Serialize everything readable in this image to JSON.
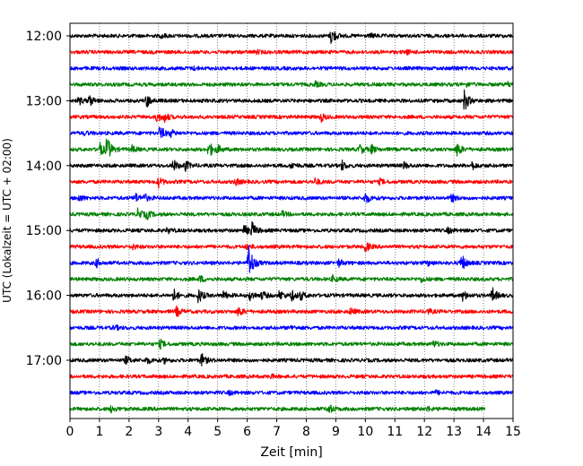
{
  "chart_data": {
    "type": "line",
    "title": "",
    "xlabel": "Zeit  [min]",
    "ylabel": "UTC (Lokalzeit = UTC + 02:00)",
    "xlim": [
      0,
      15
    ],
    "x_ticks": [
      "0",
      "1",
      "2",
      "3",
      "4",
      "5",
      "6",
      "7",
      "8",
      "9",
      "10",
      "11",
      "12",
      "13",
      "14",
      "15"
    ],
    "y_tick_labels": [
      {
        "label": "12:00",
        "row": 0
      },
      {
        "label": "13:00",
        "row": 4
      },
      {
        "label": "14:00",
        "row": 8
      },
      {
        "label": "15:00",
        "row": 12
      },
      {
        "label": "16:00",
        "row": 16
      },
      {
        "label": "17:00",
        "row": 20
      }
    ],
    "row_count": 24,
    "row_interval_min": 15,
    "grid": {
      "vertical": true,
      "horizontal": false,
      "style": "dotted"
    },
    "colors": [
      "#000000",
      "#ff0000",
      "#0000ff",
      "#008000"
    ],
    "traces": [
      {
        "row": 0,
        "color": "#000000",
        "events": [
          {
            "t": 8.85,
            "a": 1.1
          },
          {
            "t": 3.1,
            "a": 0.25
          },
          {
            "t": 10.2,
            "a": 0.2
          }
        ]
      },
      {
        "row": 1,
        "color": "#ff0000",
        "events": [
          {
            "t": 6.3,
            "a": 0.2
          },
          {
            "t": 11.4,
            "a": 0.2
          }
        ]
      },
      {
        "row": 2,
        "color": "#0000ff",
        "events": [
          {
            "t": 4.2,
            "a": 0.15
          },
          {
            "t": 13.0,
            "a": 0.2
          }
        ]
      },
      {
        "row": 3,
        "color": "#008000",
        "events": [
          {
            "t": 8.3,
            "a": 0.3
          },
          {
            "t": 13.4,
            "a": 0.25
          },
          {
            "t": 14.8,
            "a": 0.3
          }
        ]
      },
      {
        "row": 4,
        "color": "#000000",
        "events": [
          {
            "t": 0.3,
            "a": 0.45
          },
          {
            "t": 0.65,
            "a": 0.7
          },
          {
            "t": 2.6,
            "a": 0.8
          },
          {
            "t": 13.35,
            "a": 1.3
          }
        ]
      },
      {
        "row": 5,
        "color": "#ff0000",
        "events": [
          {
            "t": 2.95,
            "a": 0.6
          },
          {
            "t": 3.2,
            "a": 0.5
          },
          {
            "t": 8.5,
            "a": 0.5
          }
        ]
      },
      {
        "row": 6,
        "color": "#0000ff",
        "events": [
          {
            "t": 3.05,
            "a": 0.9
          },
          {
            "t": 3.4,
            "a": 0.4
          },
          {
            "t": 0.5,
            "a": 0.2
          }
        ]
      },
      {
        "row": 7,
        "color": "#008000",
        "events": [
          {
            "t": 1.0,
            "a": 0.9
          },
          {
            "t": 1.25,
            "a": 1.5
          },
          {
            "t": 2.1,
            "a": 0.4
          },
          {
            "t": 4.7,
            "a": 1.0
          },
          {
            "t": 5.0,
            "a": 0.4
          },
          {
            "t": 9.8,
            "a": 0.6
          },
          {
            "t": 10.2,
            "a": 0.5
          },
          {
            "t": 13.1,
            "a": 0.9
          }
        ]
      },
      {
        "row": 8,
        "color": "#000000",
        "events": [
          {
            "t": 3.5,
            "a": 0.7
          },
          {
            "t": 3.9,
            "a": 0.6
          },
          {
            "t": 7.5,
            "a": 0.4
          },
          {
            "t": 9.2,
            "a": 0.6
          },
          {
            "t": 11.3,
            "a": 0.4
          },
          {
            "t": 13.6,
            "a": 0.5
          }
        ]
      },
      {
        "row": 9,
        "color": "#ff0000",
        "events": [
          {
            "t": 3.0,
            "a": 0.6
          },
          {
            "t": 5.6,
            "a": 0.4
          },
          {
            "t": 8.3,
            "a": 0.4
          },
          {
            "t": 10.5,
            "a": 0.3
          }
        ]
      },
      {
        "row": 10,
        "color": "#0000ff",
        "events": [
          {
            "t": 0.3,
            "a": 0.4
          },
          {
            "t": 2.2,
            "a": 0.6
          },
          {
            "t": 2.5,
            "a": 0.5
          },
          {
            "t": 10.0,
            "a": 0.7
          },
          {
            "t": 12.9,
            "a": 0.5
          }
        ]
      },
      {
        "row": 11,
        "color": "#008000",
        "events": [
          {
            "t": 2.3,
            "a": 0.7
          },
          {
            "t": 2.6,
            "a": 0.5
          },
          {
            "t": 7.2,
            "a": 0.3
          }
        ]
      },
      {
        "row": 12,
        "color": "#000000",
        "events": [
          {
            "t": 5.9,
            "a": 0.6
          },
          {
            "t": 6.15,
            "a": 1.0
          },
          {
            "t": 3.3,
            "a": 0.3
          },
          {
            "t": 12.8,
            "a": 0.3
          }
        ]
      },
      {
        "row": 13,
        "color": "#ff0000",
        "events": [
          {
            "t": 10.0,
            "a": 0.6
          },
          {
            "t": 2.1,
            "a": 0.3
          },
          {
            "t": 6.0,
            "a": 0.3
          }
        ]
      },
      {
        "row": 14,
        "color": "#0000ff",
        "events": [
          {
            "t": 6.05,
            "a": 2.5
          },
          {
            "t": 13.25,
            "a": 1.1
          },
          {
            "t": 0.9,
            "a": 0.5
          },
          {
            "t": 9.1,
            "a": 0.4
          },
          {
            "t": 12.1,
            "a": 0.3
          }
        ]
      },
      {
        "row": 15,
        "color": "#008000",
        "events": [
          {
            "t": 4.4,
            "a": 0.4
          },
          {
            "t": 8.9,
            "a": 0.4
          },
          {
            "t": 11.9,
            "a": 0.3
          }
        ]
      },
      {
        "row": 16,
        "color": "#000000",
        "events": [
          {
            "t": 3.5,
            "a": 0.8
          },
          {
            "t": 4.35,
            "a": 0.9
          },
          {
            "t": 5.2,
            "a": 0.5
          },
          {
            "t": 6.1,
            "a": 0.6
          },
          {
            "t": 6.5,
            "a": 0.5
          },
          {
            "t": 7.1,
            "a": 0.6
          },
          {
            "t": 7.5,
            "a": 0.6
          },
          {
            "t": 7.8,
            "a": 0.5
          },
          {
            "t": 13.3,
            "a": 0.6
          },
          {
            "t": 14.3,
            "a": 0.9
          }
        ]
      },
      {
        "row": 17,
        "color": "#ff0000",
        "events": [
          {
            "t": 3.6,
            "a": 0.6
          },
          {
            "t": 5.7,
            "a": 0.6
          },
          {
            "t": 9.5,
            "a": 0.4
          },
          {
            "t": 12.1,
            "a": 0.3
          }
        ]
      },
      {
        "row": 18,
        "color": "#0000ff",
        "events": [
          {
            "t": 1.5,
            "a": 0.3
          },
          {
            "t": 7.5,
            "a": 0.2
          }
        ]
      },
      {
        "row": 19,
        "color": "#008000",
        "events": [
          {
            "t": 3.05,
            "a": 0.5
          },
          {
            "t": 12.3,
            "a": 0.4
          }
        ]
      },
      {
        "row": 20,
        "color": "#000000",
        "events": [
          {
            "t": 1.9,
            "a": 0.5
          },
          {
            "t": 2.6,
            "a": 0.4
          },
          {
            "t": 3.2,
            "a": 0.3
          },
          {
            "t": 4.45,
            "a": 0.8
          }
        ]
      },
      {
        "row": 21,
        "color": "#ff0000",
        "events": [
          {
            "t": 6.8,
            "a": 0.2
          }
        ]
      },
      {
        "row": 22,
        "color": "#0000ff",
        "events": [
          {
            "t": 5.4,
            "a": 0.2
          },
          {
            "t": 12.4,
            "a": 0.2
          }
        ]
      },
      {
        "row": 23,
        "color": "#008000",
        "end": 14.05,
        "events": [
          {
            "t": 1.4,
            "a": 0.4
          },
          {
            "t": 8.75,
            "a": 0.6
          },
          {
            "t": 12.1,
            "a": 0.25
          }
        ]
      }
    ]
  }
}
